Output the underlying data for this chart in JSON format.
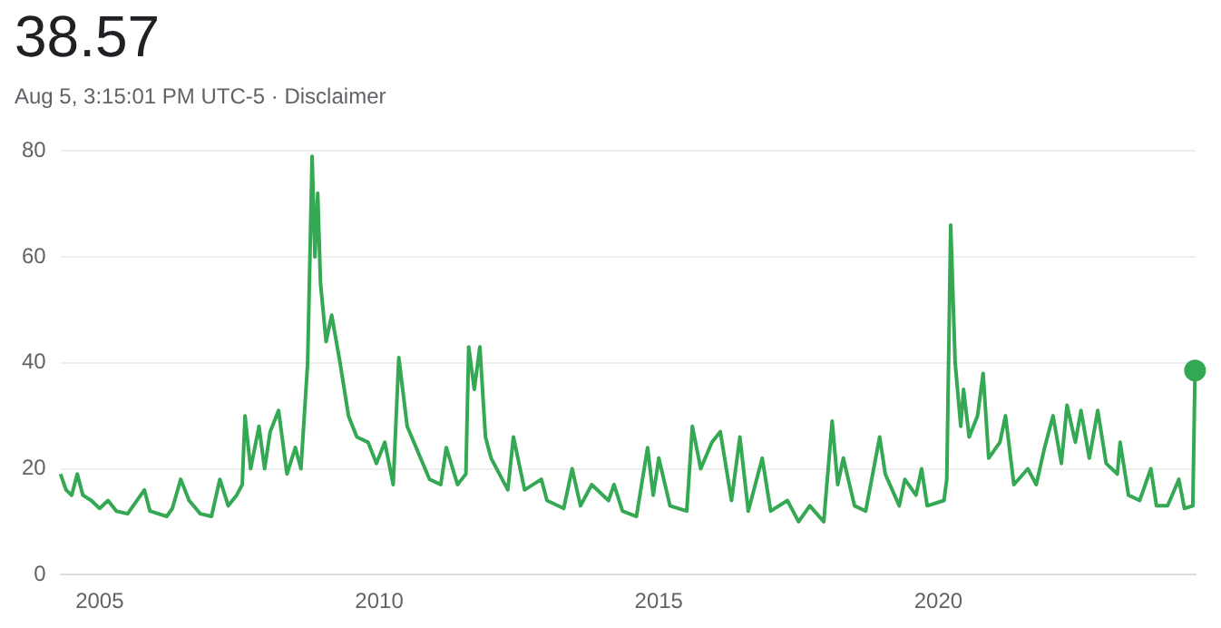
{
  "chart_data": {
    "type": "line",
    "title": "38.57",
    "subtitle": "Aug 5, 3:15:01 PM UTC-5 · Disclaimer",
    "series": [
      {
        "color": "#34a853",
        "marker": "none",
        "x": [
          2004.3,
          2004.4,
          2004.5,
          2004.6,
          2004.7,
          2004.85,
          2005.0,
          2005.15,
          2005.3,
          2005.5,
          2005.8,
          2005.9,
          2006.2,
          2006.3,
          2006.45,
          2006.6,
          2006.8,
          2007.0,
          2007.15,
          2007.3,
          2007.45,
          2007.55,
          2007.6,
          2007.7,
          2007.85,
          2007.95,
          2008.05,
          2008.2,
          2008.35,
          2008.5,
          2008.6,
          2008.72,
          2008.8,
          2008.85,
          2008.9,
          2008.95,
          2009.05,
          2009.15,
          2009.3,
          2009.45,
          2009.6,
          2009.8,
          2009.95,
          2010.1,
          2010.25,
          2010.35,
          2010.5,
          2010.7,
          2010.9,
          2011.1,
          2011.2,
          2011.4,
          2011.55,
          2011.6,
          2011.7,
          2011.8,
          2011.9,
          2012.0,
          2012.3,
          2012.4,
          2012.6,
          2012.9,
          2013.0,
          2013.3,
          2013.45,
          2013.6,
          2013.8,
          2014.1,
          2014.2,
          2014.35,
          2014.6,
          2014.8,
          2014.9,
          2015.0,
          2015.2,
          2015.5,
          2015.6,
          2015.75,
          2015.95,
          2016.1,
          2016.3,
          2016.45,
          2016.6,
          2016.85,
          2017.0,
          2017.3,
          2017.5,
          2017.7,
          2017.95,
          2018.1,
          2018.2,
          2018.3,
          2018.5,
          2018.7,
          2018.95,
          2019.05,
          2019.3,
          2019.4,
          2019.6,
          2019.7,
          2019.8,
          2020.1,
          2020.15,
          2020.22,
          2020.3,
          2020.4,
          2020.45,
          2020.55,
          2020.7,
          2020.8,
          2020.9,
          2021.1,
          2021.2,
          2021.35,
          2021.6,
          2021.75,
          2021.9,
          2022.05,
          2022.2,
          2022.3,
          2022.45,
          2022.55,
          2022.7,
          2022.85,
          2023.0,
          2023.2,
          2023.25,
          2023.4,
          2023.6,
          2023.8,
          2023.9,
          2024.1,
          2024.3,
          2024.4,
          2024.55,
          2024.59
        ],
        "values": [
          19,
          16,
          15,
          19,
          15,
          14,
          12.5,
          14,
          12,
          11.5,
          16,
          12,
          11,
          12.5,
          18,
          14,
          11.5,
          11,
          18,
          13,
          15,
          17,
          30,
          20,
          28,
          20,
          27,
          31,
          19,
          24,
          20,
          40,
          79,
          60,
          72,
          55,
          44,
          49,
          40,
          30,
          26,
          25,
          21,
          25,
          17,
          41,
          28,
          23,
          18,
          17,
          24,
          17,
          19,
          43,
          35,
          43,
          26,
          22,
          16,
          26,
          16,
          18,
          14,
          12.5,
          20,
          13,
          17,
          14,
          17,
          12,
          11,
          24,
          15,
          22,
          13,
          12,
          28,
          20,
          25,
          27,
          14,
          26,
          12,
          22,
          12,
          14,
          10,
          13,
          10,
          29,
          17,
          22,
          13,
          12,
          26,
          19,
          13,
          18,
          15,
          20,
          13,
          14,
          18,
          66,
          40,
          28,
          35,
          26,
          30,
          38,
          22,
          25,
          30,
          17,
          20,
          17,
          24,
          30,
          21,
          32,
          25,
          31,
          22,
          31,
          21,
          19,
          25,
          15,
          14,
          20,
          13,
          13,
          18,
          12.5,
          13,
          38.57
        ]
      },
      {
        "type": "scatter",
        "color": "#34a853",
        "marker": "circle",
        "x": [
          2024.59
        ],
        "values": [
          38.57
        ]
      }
    ],
    "xlim": [
      2004.3,
      2024.6
    ],
    "xticks": [
      2005,
      2010,
      2015,
      2020
    ],
    "ylim": [
      0,
      80
    ],
    "yticks": [
      0,
      20,
      40,
      60,
      80
    ],
    "grid": "y",
    "legend": false
  }
}
